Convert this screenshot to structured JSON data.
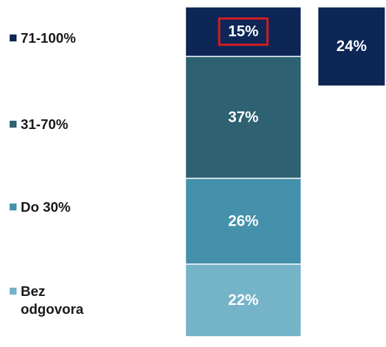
{
  "chart_data": {
    "type": "stacked_bar",
    "categories": [
      null,
      null
    ],
    "series": [
      {
        "name": "71-100%",
        "color": "#0d2656",
        "values": [
          15,
          24
        ],
        "value_labels": [
          "15%",
          "24%"
        ]
      },
      {
        "name": "31-70%",
        "color": "#2e6171",
        "values": [
          37,
          null
        ],
        "value_labels": [
          "37%",
          null
        ]
      },
      {
        "name": "Do 30%",
        "color": "#4591ab",
        "values": [
          26,
          null
        ],
        "value_labels": [
          "26%",
          null
        ]
      },
      {
        "name": "Bez odgovora",
        "color": "#74b3c8",
        "values": [
          22,
          null
        ],
        "value_labels": [
          "22%",
          null
        ]
      }
    ],
    "ylim": [
      0,
      100
    ]
  }
}
